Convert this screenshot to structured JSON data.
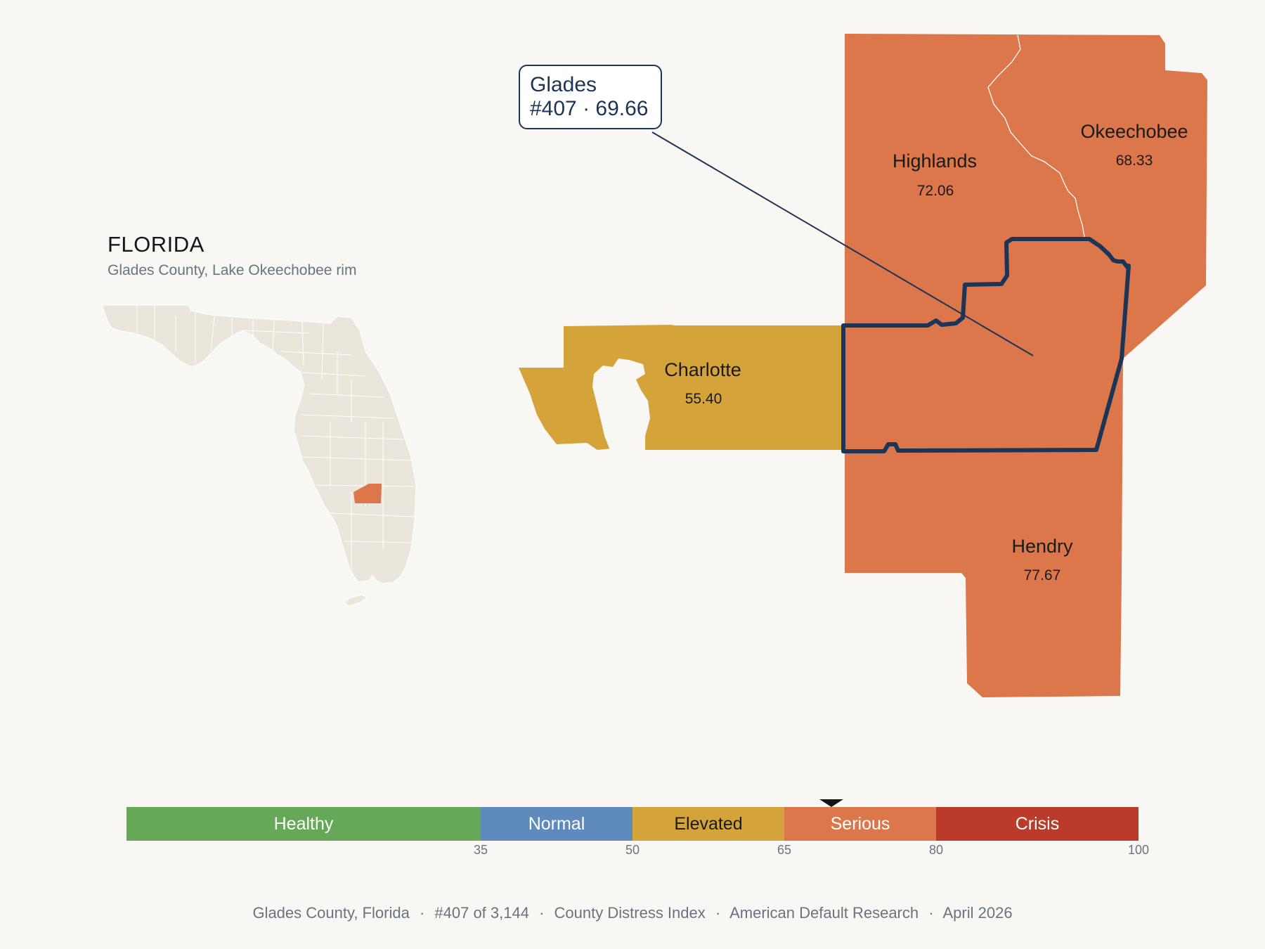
{
  "inset": {
    "title": "FLORIDA",
    "subtitle": "Glades County, Lake Okeechobee rim"
  },
  "callout": {
    "line1": "Glades",
    "line2": "#407 · 69.66"
  },
  "counties": {
    "highlands": {
      "name": "Highlands",
      "value": "72.06"
    },
    "okeechobee": {
      "name": "Okeechobee",
      "value": "68.33"
    },
    "charlotte": {
      "name": "Charlotte",
      "value": "55.40"
    },
    "hendry": {
      "name": "Hendry",
      "value": "77.67"
    }
  },
  "colors": {
    "healthy": "#67a758",
    "normal": "#5e8bbb",
    "elevated": "#d4a43b",
    "serious": "#db774a",
    "crisis": "#bb3b2b",
    "outline": "#1c3456",
    "inset_fill": "#ebe6dc"
  },
  "legend": {
    "min": 0,
    "max": 100,
    "marker_value": 69.66,
    "segments": [
      {
        "label": "Healthy",
        "from": 0,
        "to": 35
      },
      {
        "label": "Normal",
        "from": 35,
        "to": 50
      },
      {
        "label": "Elevated",
        "from": 50,
        "to": 65
      },
      {
        "label": "Serious",
        "from": 65,
        "to": 80
      },
      {
        "label": "Crisis",
        "from": 80,
        "to": 100
      }
    ],
    "ticks": [
      "35",
      "50",
      "65",
      "80",
      "100"
    ]
  },
  "footer": {
    "county": "Glades County, Florida",
    "rank": "#407 of 3,144",
    "index": "County Distress Index",
    "source": "American Default Research",
    "date": "April 2026",
    "separator": "·"
  }
}
